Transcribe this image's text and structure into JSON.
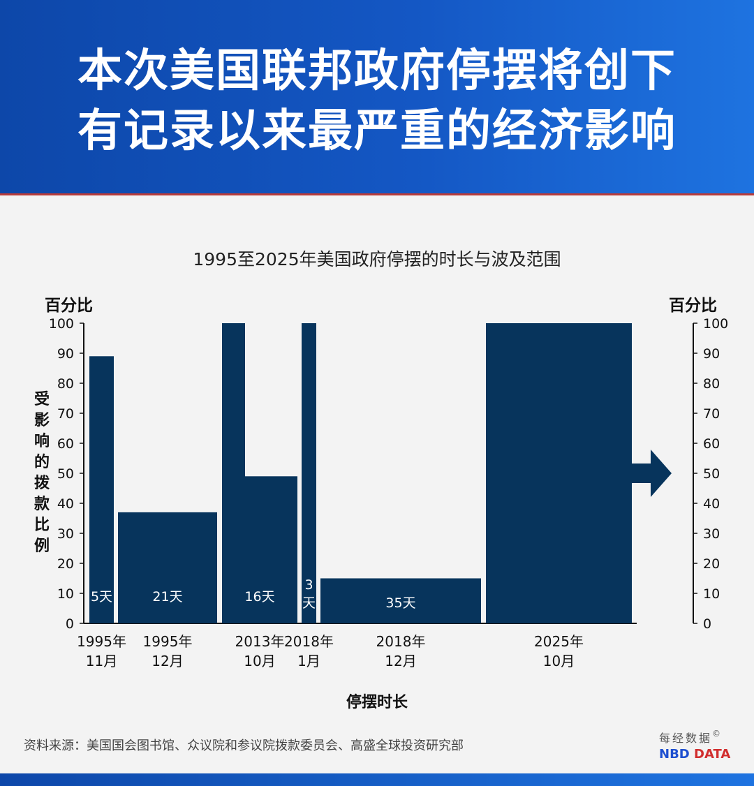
{
  "headline": {
    "line1": "本次美国联邦政府停摆将创下",
    "line2": "有记录以来最严重的经济影响"
  },
  "chart_data": {
    "type": "bar",
    "variable_width": true,
    "title": "1995至2025年美国政府停摆的时长与波及范围",
    "ylabel": "受影响的拨款比例",
    "xlabel": "停摆时长",
    "y_unit_left": "百分比",
    "y_unit_right": "百分比",
    "ylim": [
      0,
      100
    ],
    "yticks": [
      0,
      10,
      20,
      30,
      40,
      50,
      60,
      70,
      80,
      90,
      100
    ],
    "grid": false,
    "bar_color": "#07345c",
    "bars": [
      {
        "category": [
          "1995年",
          "11月"
        ],
        "duration_label": "5天",
        "duration_days": 5,
        "value": 89
      },
      {
        "category": [
          "1995年",
          "12月"
        ],
        "duration_label": "21天",
        "duration_days": 21,
        "value": 37
      },
      {
        "category": [
          "2013年",
          "10月"
        ],
        "duration_label": "16天",
        "duration_days": 16,
        "value": 49,
        "note": "partial initial portion reaching 100"
      },
      {
        "category": [
          "2018年",
          "1月"
        ],
        "duration_label": "3\n天",
        "duration_days": 3,
        "value": 100
      },
      {
        "category": [
          "2018年",
          "12月"
        ],
        "duration_label": "35天",
        "duration_days": 35,
        "value": 15
      },
      {
        "category": [
          "2025年",
          "10月"
        ],
        "duration_label": "",
        "duration_days": null,
        "value": 100,
        "ongoing": true
      }
    ]
  },
  "source": {
    "text": "资料来源：美国国会图书馆、众议院和参议院拨款委员会、高盛全球投资研究部"
  },
  "brand": {
    "cn": "每经数据",
    "copyright": "©",
    "en_nbd": "NBD",
    "en_data": "DATA"
  }
}
